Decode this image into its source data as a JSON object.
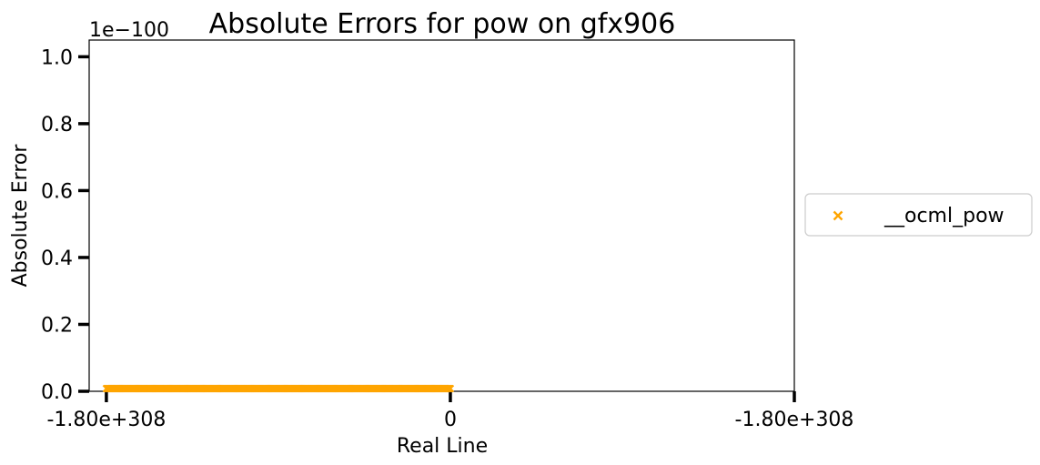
{
  "chart_data": {
    "type": "scatter",
    "title": "Absolute Errors for pow on gfx906",
    "xlabel": "Real Line",
    "ylabel": "Absolute Error",
    "y_offset_text": "1e−100",
    "x_ticks": [
      {
        "value": -1.0,
        "label": "-1.80e+308"
      },
      {
        "value": 0.0,
        "label": "0"
      },
      {
        "value": 1.0,
        "label": "-1.80e+308"
      }
    ],
    "y_ticks": [
      {
        "value": 0.0,
        "label": "0.0"
      },
      {
        "value": 0.2,
        "label": "0.2"
      },
      {
        "value": 0.4,
        "label": "0.4"
      },
      {
        "value": 0.6,
        "label": "0.6"
      },
      {
        "value": 0.8,
        "label": "0.8"
      },
      {
        "value": 1.0,
        "label": "1.0"
      }
    ],
    "xlim": [
      -1.05,
      1.0
    ],
    "ylim": [
      0.0,
      1.05
    ],
    "grid": false,
    "legend_position": "outside-right",
    "series": [
      {
        "name": "__ocml_pow",
        "color": "#ffa500",
        "marker": "x",
        "x_range": [
          -1.0,
          0.0
        ],
        "y": 0.0,
        "count": 400
      }
    ]
  }
}
